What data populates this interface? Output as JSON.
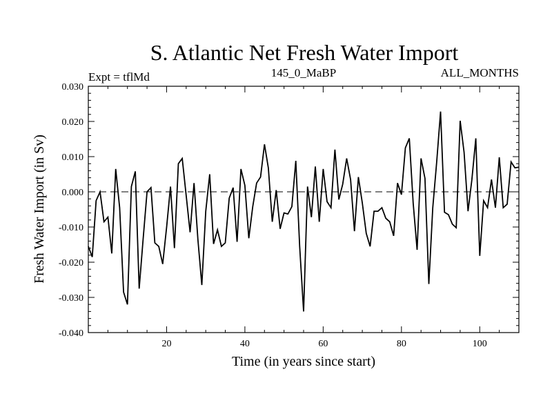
{
  "chart_data": {
    "type": "line",
    "title": "S. Atlantic Net Fresh Water Import",
    "subtitle_left": "Expt = tflMd",
    "subtitle_center": "145_0_MaBP",
    "subtitle_right": "ALL_MONTHS",
    "xlabel": "Time (in years since start)",
    "ylabel": "Fresh Water Import (in Sv)",
    "xlim": [
      0,
      110
    ],
    "ylim": [
      -0.04,
      0.03
    ],
    "x_ticks": [
      20,
      40,
      60,
      80,
      100
    ],
    "x_tick_labels": [
      "20",
      "40",
      "60",
      "80",
      "100"
    ],
    "y_ticks": [
      -0.04,
      -0.03,
      -0.02,
      -0.01,
      0.0,
      0.01,
      0.02,
      0.03
    ],
    "y_tick_labels": [
      "-0.040",
      "-0.030",
      "-0.020",
      "-0.010",
      "0.000",
      "0.010",
      "0.020",
      "0.030"
    ],
    "zero_line": true,
    "series": [
      {
        "name": "Fresh Water Import",
        "x": [
          0,
          1,
          2,
          3,
          4,
          5,
          6,
          7,
          8,
          9,
          10,
          11,
          12,
          13,
          14,
          15,
          16,
          17,
          18,
          19,
          20,
          21,
          22,
          23,
          24,
          25,
          26,
          27,
          28,
          29,
          30,
          31,
          32,
          33,
          34,
          35,
          36,
          37,
          38,
          39,
          40,
          41,
          42,
          43,
          44,
          45,
          46,
          47,
          48,
          49,
          50,
          51,
          52,
          53,
          54,
          55,
          56,
          57,
          58,
          59,
          60,
          61,
          62,
          63,
          64,
          65,
          66,
          67,
          68,
          69,
          70,
          71,
          72,
          73,
          74,
          75,
          76,
          77,
          78,
          79,
          80,
          81,
          82,
          83,
          84,
          85,
          86,
          87,
          88,
          89,
          90,
          91,
          92,
          93,
          94,
          95,
          96,
          97,
          98,
          99,
          100,
          101,
          102,
          103,
          104,
          105,
          106,
          107,
          108,
          109,
          110
        ],
        "values": [
          -0.0155,
          -0.0185,
          -0.0025,
          0.0,
          -0.0085,
          -0.0072,
          -0.0175,
          0.0065,
          -0.0045,
          -0.0285,
          -0.032,
          0.0015,
          0.0058,
          -0.0275,
          -0.0135,
          0.0,
          0.0012,
          -0.0145,
          -0.0155,
          -0.0205,
          -0.01,
          0.0015,
          -0.016,
          0.008,
          0.0095,
          -0.001,
          -0.0115,
          0.0025,
          -0.0135,
          -0.0265,
          -0.0055,
          0.005,
          -0.0148,
          -0.0108,
          -0.0155,
          -0.0145,
          -0.0018,
          0.0012,
          -0.0142,
          0.0065,
          0.0018,
          -0.0132,
          -0.0042,
          0.0025,
          0.0042,
          0.0135,
          0.0068,
          -0.0085,
          0.0005,
          -0.0105,
          -0.006,
          -0.0063,
          -0.0042,
          0.0088,
          -0.0155,
          -0.034,
          0.0015,
          -0.0072,
          0.0072,
          -0.0085,
          0.0065,
          -0.0028,
          -0.0045,
          0.012,
          -0.0022,
          0.0022,
          0.0095,
          0.0035,
          -0.0112,
          0.0042,
          -0.0032,
          -0.0118,
          -0.0155,
          -0.0055,
          -0.0055,
          -0.0045,
          -0.0075,
          -0.0085,
          -0.0125,
          0.0025,
          -0.0008,
          0.0125,
          0.0152,
          -0.0032,
          -0.0165,
          0.0095,
          0.0038,
          -0.0262,
          -0.0045,
          0.0085,
          0.0228,
          -0.0058,
          -0.0065,
          -0.0092,
          -0.0102,
          0.0202,
          0.0112,
          -0.0055,
          0.0035,
          0.0152,
          -0.0182,
          -0.0025,
          -0.0045,
          0.0035,
          -0.0045,
          0.0098,
          -0.0045,
          -0.0035,
          0.0085,
          0.0068,
          0.007
        ]
      }
    ]
  }
}
